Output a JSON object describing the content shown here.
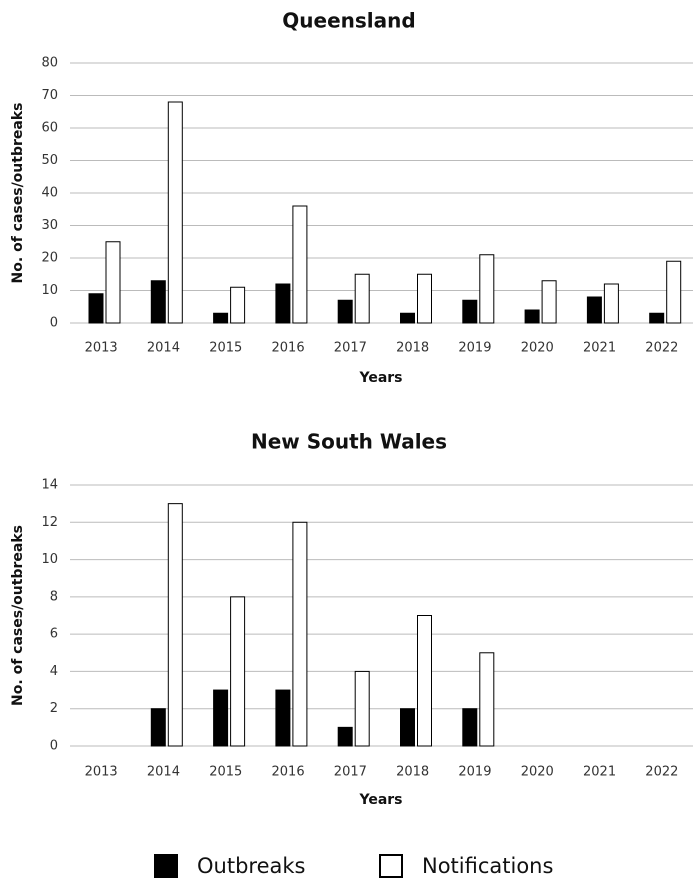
{
  "chart_data": [
    {
      "type": "bar",
      "title": "Queensland",
      "x_label": "Years",
      "y_label": "No. of cases/outbreaks",
      "categories": [
        "2013",
        "2014",
        "2015",
        "2016",
        "2017",
        "2018",
        "2019",
        "2020",
        "2021",
        "2022"
      ],
      "series": [
        {
          "name": "Outbreaks",
          "color": "#000000",
          "values": [
            9,
            13,
            3,
            12,
            7,
            3,
            7,
            4,
            8,
            3
          ]
        },
        {
          "name": "Notifications",
          "color": "#ffffff",
          "values": [
            25,
            68,
            11,
            36,
            15,
            15,
            21,
            13,
            12,
            19
          ]
        }
      ],
      "ylim": [
        0,
        80
      ],
      "yticks": [
        0,
        10,
        20,
        30,
        40,
        50,
        60,
        70,
        80
      ],
      "grid": true
    },
    {
      "type": "bar",
      "title": "New South Wales",
      "x_label": "Years",
      "y_label": "No. of cases/outbreaks",
      "categories": [
        "2013",
        "2014",
        "2015",
        "2016",
        "2017",
        "2018",
        "2019",
        "2020",
        "2021",
        "2022"
      ],
      "series": [
        {
          "color": "#000000",
          "values": [
            0,
            2,
            3,
            3,
            1,
            2,
            2,
            0,
            0,
            0
          ]
        },
        {
          "color": "#ffffff",
          "values": [
            0,
            13,
            8,
            12,
            4,
            7,
            5,
            0,
            0,
            0
          ]
        }
      ],
      "ylim": [
        0,
        14
      ],
      "yticks": [
        0,
        2,
        4,
        6,
        8,
        10,
        12,
        14
      ],
      "grid": true
    }
  ]
}
